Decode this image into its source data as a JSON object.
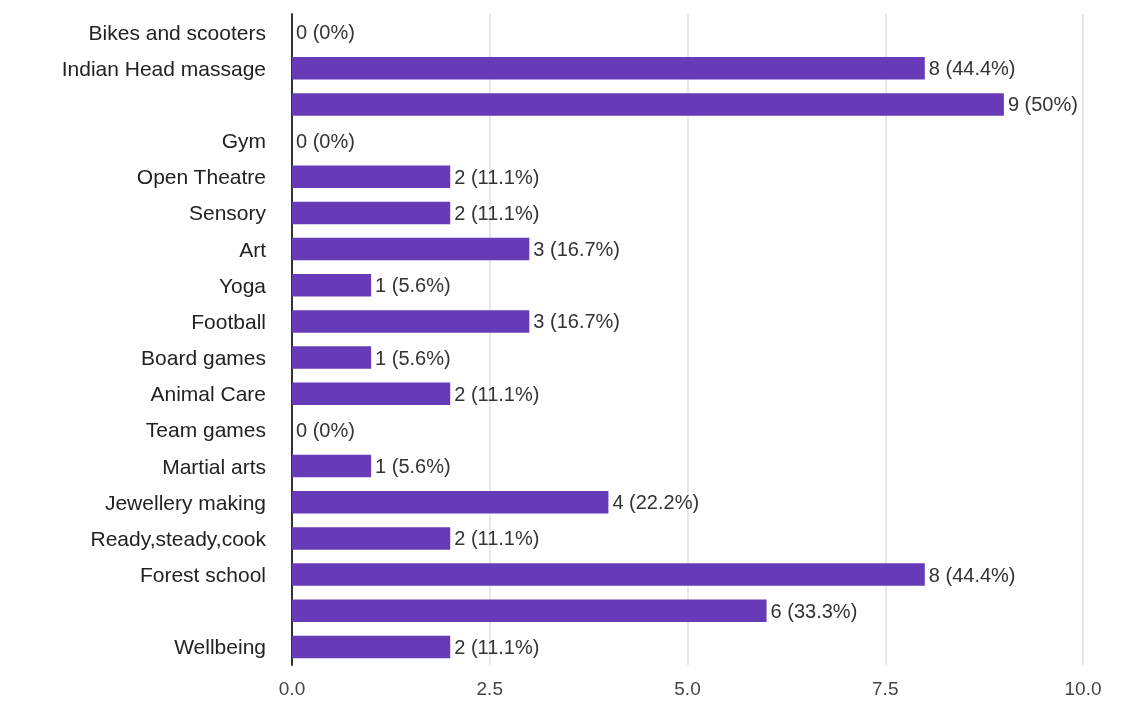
{
  "chart_data": {
    "type": "bar",
    "orientation": "horizontal",
    "categories": [
      "Bikes and scooters",
      "Indian Head massage",
      null,
      "Gym",
      "Open Theatre",
      "Sensory",
      "Art",
      "Yoga",
      "Football",
      "Board games",
      "Animal Care",
      "Team games",
      "Martial arts",
      "Jewellery making",
      "Ready,steady,cook",
      "Forest school",
      null,
      "Wellbeing"
    ],
    "values": [
      0,
      8,
      9,
      0,
      2,
      2,
      3,
      1,
      3,
      1,
      2,
      0,
      1,
      4,
      2,
      8,
      6,
      2
    ],
    "value_labels": [
      "0 (0%)",
      "8 (44.4%)",
      "9 (50%)",
      "0 (0%)",
      "2 (11.1%)",
      "2 (11.1%)",
      "3 (16.7%)",
      "1 (5.6%)",
      "3 (16.7%)",
      "1 (5.6%)",
      "2 (11.1%)",
      "0 (0%)",
      "1 (5.6%)",
      "4 (22.2%)",
      "2 (11.1%)",
      "8 (44.4%)",
      "6 (33.3%)",
      "2 (11.1%)"
    ],
    "color": "#673ab7",
    "xlim": [
      0,
      10
    ],
    "xticks": [
      {
        "value": 0,
        "label": "0.0"
      },
      {
        "value": 2.5,
        "label": "2.5"
      },
      {
        "value": 5,
        "label": "5.0"
      },
      {
        "value": 7.5,
        "label": "7.5"
      },
      {
        "value": 10,
        "label": "10.0"
      }
    ],
    "grid": "x"
  }
}
